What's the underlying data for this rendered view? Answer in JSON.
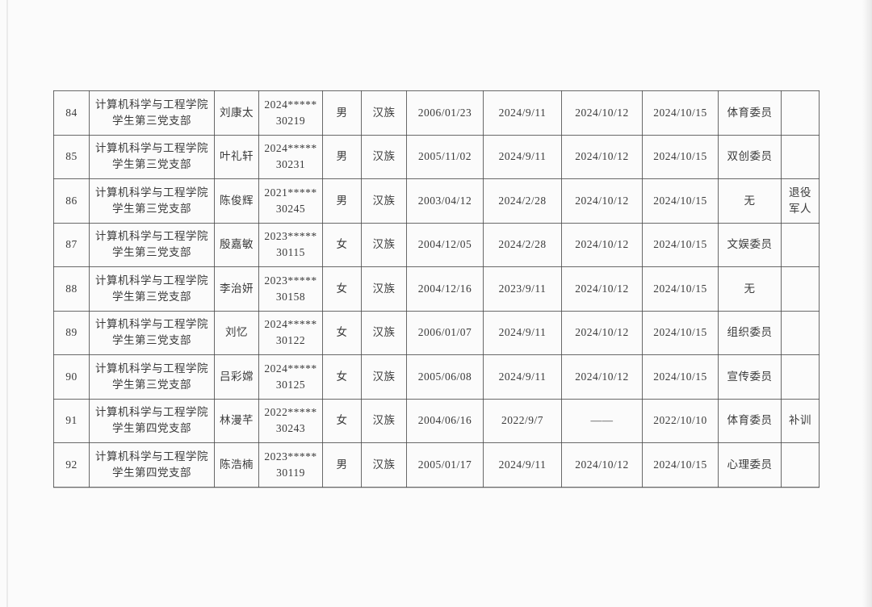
{
  "colors": {
    "page_background": "#fbfbfb",
    "table_border": "#4a4a4a",
    "text": "#3a3a3a"
  },
  "table": {
    "rows": [
      {
        "seq": "84",
        "branch_line1": "计算机科学与工程学院",
        "branch_line2": "学生第三党支部",
        "name": "刘康太",
        "id_line1": "2024*****",
        "id_line2": "30219",
        "gender": "男",
        "ethnicity": "汉族",
        "birth_date": "2006/01/23",
        "date_a": "2024/9/11",
        "date_b": "2024/10/12",
        "date_c": "2024/10/15",
        "position": "体育委员",
        "remark": ""
      },
      {
        "seq": "85",
        "branch_line1": "计算机科学与工程学院",
        "branch_line2": "学生第三党支部",
        "name": "叶礼轩",
        "id_line1": "2024*****",
        "id_line2": "30231",
        "gender": "男",
        "ethnicity": "汉族",
        "birth_date": "2005/11/02",
        "date_a": "2024/9/11",
        "date_b": "2024/10/12",
        "date_c": "2024/10/15",
        "position": "双创委员",
        "remark": ""
      },
      {
        "seq": "86",
        "branch_line1": "计算机科学与工程学院",
        "branch_line2": "学生第三党支部",
        "name": "陈俊辉",
        "id_line1": "2021*****",
        "id_line2": "30245",
        "gender": "男",
        "ethnicity": "汉族",
        "birth_date": "2003/04/12",
        "date_a": "2024/2/28",
        "date_b": "2024/10/12",
        "date_c": "2024/10/15",
        "position": "无",
        "remark": "退役 军人"
      },
      {
        "seq": "87",
        "branch_line1": "计算机科学与工程学院",
        "branch_line2": "学生第三党支部",
        "name": "殷嘉敏",
        "id_line1": "2023*****",
        "id_line2": "30115",
        "gender": "女",
        "ethnicity": "汉族",
        "birth_date": "2004/12/05",
        "date_a": "2024/2/28",
        "date_b": "2024/10/12",
        "date_c": "2024/10/15",
        "position": "文娱委员",
        "remark": ""
      },
      {
        "seq": "88",
        "branch_line1": "计算机科学与工程学院",
        "branch_line2": "学生第三党支部",
        "name": "李治妍",
        "id_line1": "2023*****",
        "id_line2": "30158",
        "gender": "女",
        "ethnicity": "汉族",
        "birth_date": "2004/12/16",
        "date_a": "2023/9/11",
        "date_b": "2024/10/12",
        "date_c": "2024/10/15",
        "position": "无",
        "remark": ""
      },
      {
        "seq": "89",
        "branch_line1": "计算机科学与工程学院",
        "branch_line2": "学生第三党支部",
        "name": "刘忆",
        "id_line1": "2024*****",
        "id_line2": "30122",
        "gender": "女",
        "ethnicity": "汉族",
        "birth_date": "2006/01/07",
        "date_a": "2024/9/11",
        "date_b": "2024/10/12",
        "date_c": "2024/10/15",
        "position": "组织委员",
        "remark": ""
      },
      {
        "seq": "90",
        "branch_line1": "计算机科学与工程学院",
        "branch_line2": "学生第三党支部",
        "name": "吕彩嫦",
        "id_line1": "2024*****",
        "id_line2": "30125",
        "gender": "女",
        "ethnicity": "汉族",
        "birth_date": "2005/06/08",
        "date_a": "2024/9/11",
        "date_b": "2024/10/12",
        "date_c": "2024/10/15",
        "position": "宣传委员",
        "remark": ""
      },
      {
        "seq": "91",
        "branch_line1": "计算机科学与工程学院",
        "branch_line2": "学生第四党支部",
        "name": "林漫芊",
        "id_line1": "2022*****",
        "id_line2": "30243",
        "gender": "女",
        "ethnicity": "汉族",
        "birth_date": "2004/06/16",
        "date_a": "2022/9/7",
        "date_b": "——",
        "date_c": "2022/10/10",
        "position": "体育委员",
        "remark": "补训"
      },
      {
        "seq": "92",
        "branch_line1": "计算机科学与工程学院",
        "branch_line2": "学生第四党支部",
        "name": "陈浩楠",
        "id_line1": "2023*****",
        "id_line2": "30119",
        "gender": "男",
        "ethnicity": "汉族",
        "birth_date": "2005/01/17",
        "date_a": "2024/9/11",
        "date_b": "2024/10/12",
        "date_c": "2024/10/15",
        "position": "心理委员",
        "remark": ""
      }
    ]
  }
}
